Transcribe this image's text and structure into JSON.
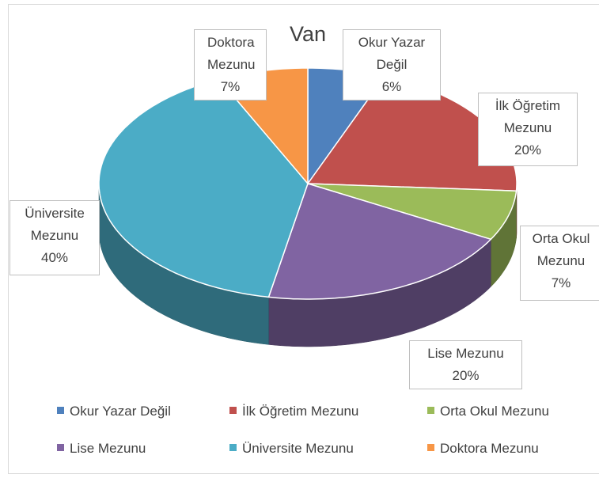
{
  "chart_data": {
    "type": "pie3d",
    "title": "Van",
    "categories": [
      "Okur Yazar Değil",
      "İlk Öğretim Mezunu",
      "Orta Okul Mezunu",
      "Lise Mezunu",
      "Üniversite Mezunu",
      "Doktora Mezunu"
    ],
    "values": [
      6,
      20,
      7,
      20,
      40,
      7
    ],
    "value_labels": [
      "6%",
      "20%",
      "7%",
      "20%",
      "40%",
      "7%"
    ],
    "colors": [
      "#4f81bd",
      "#c0504d",
      "#9bbb59",
      "#8064a2",
      "#4bacc6",
      "#f79646"
    ],
    "legend": "bottom"
  }
}
